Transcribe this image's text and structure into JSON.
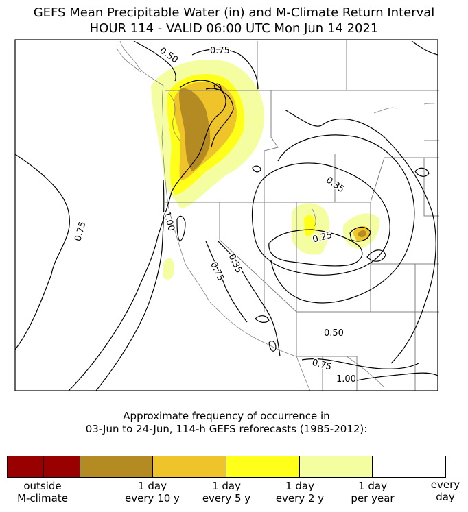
{
  "title": {
    "line1": "GEFS Mean Precipitable Water (in) and M-Climate Return Interval",
    "line2": "HOUR 114 - VALID 06:00 UTC Mon Jun 14 2021"
  },
  "map": {
    "contour_labels": [
      "0.50",
      "0.75",
      "0.75",
      "1.00",
      "0.75",
      "0.35",
      "0.35",
      "0.25",
      "0.50",
      "0.75",
      "1.00"
    ],
    "colors": {
      "outside": "#990000",
      "every_10y": "#b38b22",
      "every_5y": "#efc32a",
      "every_2y": "#ffff1a",
      "per_year": "#f4fd9f",
      "every_day": "#ffffff"
    }
  },
  "caption": {
    "line1": "Approximate frequency of occurrence in",
    "line2": "03-Jun to 24-Jun, 114-h GEFS reforecasts (1985-2012):"
  },
  "colorbar": {
    "segments": [
      {
        "name": "outside-1",
        "color": "#990000"
      },
      {
        "name": "outside-2",
        "color": "#990000"
      },
      {
        "name": "every-10y",
        "color": "#b38b22"
      },
      {
        "name": "every-5y",
        "color": "#efc32a"
      },
      {
        "name": "every-2y",
        "color": "#ffff1a"
      },
      {
        "name": "per-year",
        "color": "#f4fd9f"
      },
      {
        "name": "every-day",
        "color": "#ffffff"
      }
    ],
    "labels": [
      "outside\nM-climate",
      "1 day\nevery 10 y",
      "1 day\nevery 5 y",
      "1 day\nevery 2 y",
      "1 day\nper year",
      "every\nday"
    ]
  }
}
